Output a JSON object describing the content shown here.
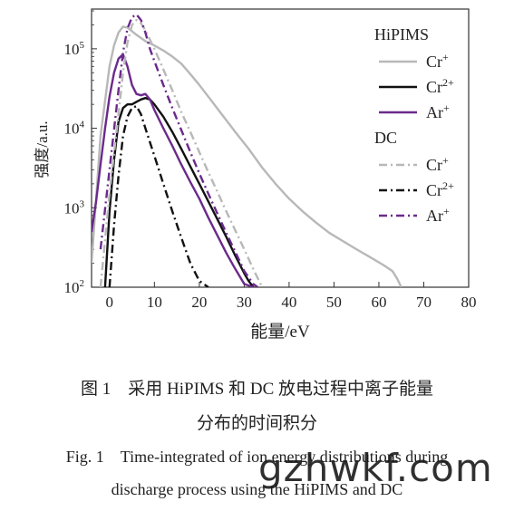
{
  "chart_data": {
    "type": "line",
    "xlabel": "能量/eV",
    "ylabel": "强度/a.u.",
    "xlim": [
      -4,
      80
    ],
    "ylim_log10": [
      2,
      5.5
    ],
    "yscale": "log",
    "x_ticks": [
      0,
      10,
      20,
      30,
      40,
      50,
      60,
      70,
      80
    ],
    "y_ticks": [
      {
        "exp": 2,
        "base": "10",
        "sup": "2"
      },
      {
        "exp": 3,
        "base": "10",
        "sup": "3"
      },
      {
        "exp": 4,
        "base": "10",
        "sup": "4"
      },
      {
        "exp": 5,
        "base": "10",
        "sup": "5"
      }
    ],
    "legend_placement": "top-right",
    "legend_groups": [
      "HiPIMS",
      "DC"
    ],
    "series": [
      {
        "name": "Cr+",
        "label_base": "Cr",
        "label_sup": "+",
        "group": "HiPIMS",
        "color": "#b8b8b8",
        "dash": "solid",
        "x": [
          -4,
          -2,
          0,
          1,
          2,
          3,
          4,
          6,
          8,
          10,
          12,
          14,
          16,
          18,
          20,
          22,
          25,
          28,
          31,
          34,
          37,
          40,
          43,
          46,
          49,
          52,
          55,
          58,
          61,
          63,
          64,
          65
        ],
        "y": [
          200,
          8000,
          60000,
          110000,
          160000,
          190000,
          185000,
          150000,
          125000,
          110000,
          95000,
          80000,
          65000,
          48000,
          35000,
          25000,
          15000,
          9000,
          5500,
          3200,
          2000,
          1300,
          900,
          650,
          480,
          380,
          300,
          240,
          190,
          160,
          130,
          100
        ]
      },
      {
        "name": "Cr2+",
        "label_base": "Cr",
        "label_sup": "2+",
        "group": "HiPIMS",
        "color": "#111111",
        "dash": "solid",
        "x": [
          -1,
          0,
          1,
          2,
          3,
          4,
          5,
          6,
          7,
          8,
          9,
          10,
          12,
          14,
          16,
          18,
          20,
          22,
          24,
          26,
          28,
          30,
          31,
          32
        ],
        "y": [
          100,
          900,
          4000,
          12000,
          18000,
          20000,
          20000,
          21500,
          23000,
          24000,
          23000,
          20000,
          14000,
          9000,
          5500,
          3300,
          2000,
          1200,
          720,
          430,
          250,
          150,
          120,
          100
        ]
      },
      {
        "name": "Ar+",
        "label_base": "Ar",
        "label_sup": "+",
        "group": "HiPIMS",
        "color": "#6b2a8c",
        "dash": "solid",
        "x": [
          -4,
          -3,
          -2,
          -1,
          0,
          1,
          2,
          3,
          4,
          5,
          6,
          7,
          8,
          9,
          10,
          12,
          14,
          16,
          18,
          20,
          22,
          24,
          26,
          28,
          30,
          32
        ],
        "y": [
          500,
          1200,
          3500,
          10000,
          25000,
          50000,
          75000,
          85000,
          60000,
          35000,
          27000,
          26000,
          27000,
          23000,
          17000,
          10000,
          6000,
          3500,
          2100,
          1300,
          750,
          450,
          270,
          170,
          110,
          100
        ]
      },
      {
        "name": "Cr+",
        "label_base": "Cr",
        "label_sup": "+",
        "group": "DC",
        "color": "#b8b8b8",
        "dash": "dashdot",
        "x": [
          -2,
          0,
          2,
          3,
          4,
          5,
          6,
          7,
          8,
          10,
          12,
          14,
          16,
          18,
          20,
          22,
          24,
          26,
          28,
          30,
          32,
          34
        ],
        "y": [
          100,
          1500,
          15000,
          50000,
          120000,
          200000,
          230000,
          210000,
          170000,
          100000,
          55000,
          30000,
          16000,
          9000,
          5000,
          2800,
          1600,
          900,
          520,
          300,
          170,
          100
        ]
      },
      {
        "name": "Cr2+",
        "label_base": "Cr",
        "label_sup": "2+",
        "group": "DC",
        "color": "#111111",
        "dash": "dashdot",
        "x": [
          0,
          1,
          2,
          3,
          4,
          5,
          6,
          7,
          8,
          10,
          12,
          14,
          16,
          18,
          20,
          22
        ],
        "y": [
          100,
          600,
          2500,
          8000,
          14000,
          18000,
          19000,
          15000,
          10000,
          4500,
          2000,
          900,
          420,
          200,
          120,
          100
        ]
      },
      {
        "name": "Ar+",
        "label_base": "Ar",
        "label_sup": "+",
        "group": "DC",
        "color": "#6b2a8c",
        "dash": "dashdot",
        "x": [
          -2,
          0,
          2,
          3,
          4,
          5,
          6,
          7,
          8,
          9,
          10,
          12,
          14,
          16,
          18,
          20,
          22,
          24,
          26,
          28,
          30,
          32,
          33
        ],
        "y": [
          300,
          3000,
          30000,
          90000,
          180000,
          250000,
          270000,
          230000,
          160000,
          100000,
          70000,
          35000,
          18000,
          9500,
          5000,
          2700,
          1500,
          850,
          480,
          280,
          160,
          110,
          100
        ]
      }
    ]
  },
  "caption": {
    "cn_line1": "图 1　采用 HiPIMS 和 DC 放电过程中离子能量",
    "cn_line2": "分布的时间积分",
    "en_line1": "Fig. 1　Time-integrated of ion energy distributions during",
    "en_line2": "discharge process using the HiPIMS and DC"
  },
  "watermark": "gzhwkf.com"
}
